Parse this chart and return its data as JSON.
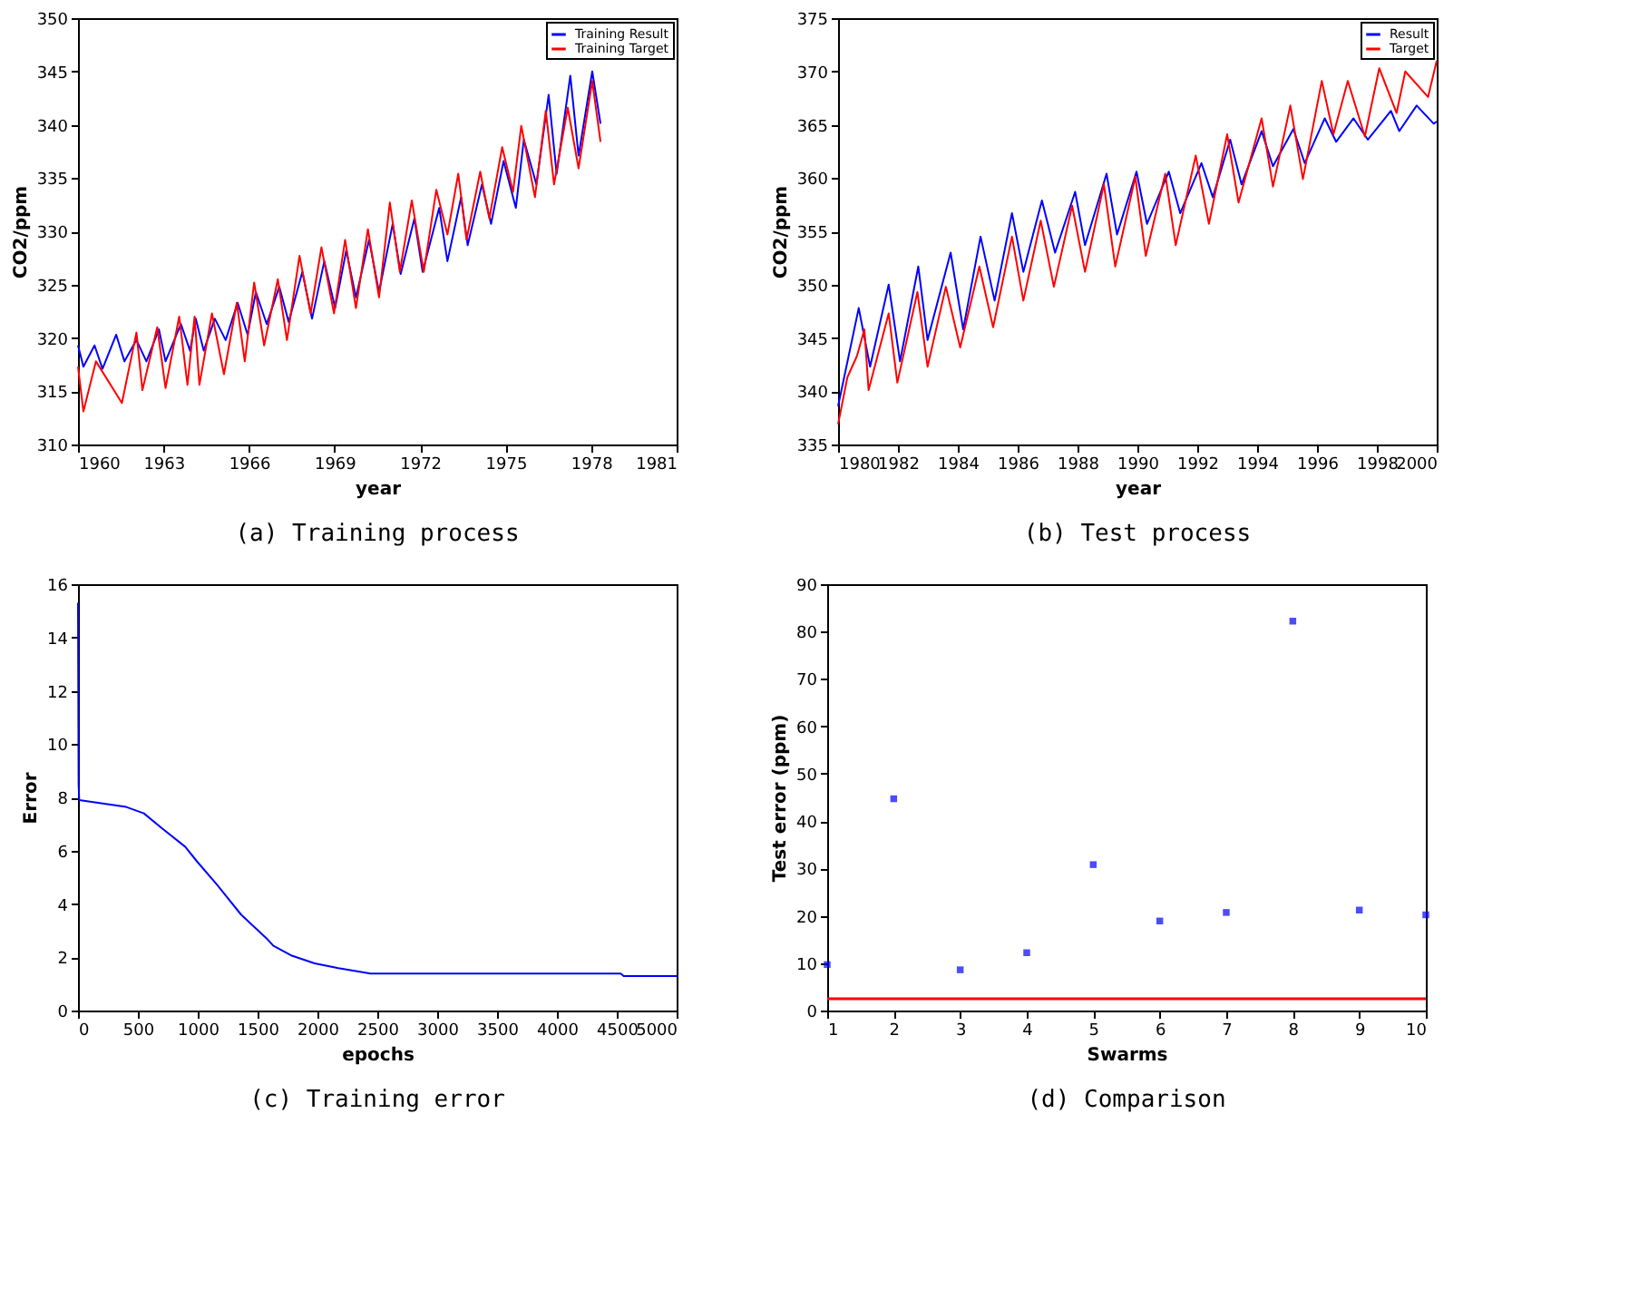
{
  "chart_data": [
    {
      "type": "line",
      "title": "(a) Training process",
      "xlabel": "year",
      "ylabel": "CO2/ppm",
      "xlim": [
        1960,
        1981
      ],
      "xticks": [
        1960,
        1963,
        1966,
        1969,
        1972,
        1975,
        1978,
        1981
      ],
      "ylim": [
        310,
        350
      ],
      "yticks": [
        310,
        315,
        320,
        325,
        330,
        335,
        340,
        345,
        350
      ],
      "legend": "top right",
      "grid": false,
      "series": [
        {
          "name": "Training Result",
          "color": "#0000ff",
          "x": [
            1960.0,
            1960.19,
            1960.58,
            1960.86,
            1961.34,
            1961.63,
            1962.05,
            1962.4,
            1962.84,
            1963.07,
            1963.61,
            1963.93,
            1964.13,
            1964.41,
            1964.8,
            1965.18,
            1965.6,
            1965.95,
            1966.24,
            1966.62,
            1967.06,
            1967.39,
            1967.87,
            1968.21,
            1968.64,
            1969.02,
            1969.41,
            1969.75,
            1970.21,
            1970.56,
            1971.04,
            1971.32,
            1971.8,
            1972.09,
            1972.67,
            1972.96,
            1973.44,
            1973.67,
            1974.17,
            1974.49,
            1974.93,
            1975.36,
            1975.64,
            1976.08,
            1976.51,
            1976.79,
            1977.27,
            1977.56,
            1978.04,
            1978.33
          ],
          "values": [
            319.3,
            317.3,
            319.3,
            317.1,
            320.3,
            317.8,
            319.8,
            317.8,
            320.8,
            317.8,
            321.3,
            318.8,
            321.8,
            318.8,
            321.8,
            319.8,
            323.3,
            320.3,
            324.3,
            321.3,
            324.8,
            321.5,
            326.2,
            321.8,
            327.2,
            322.8,
            328.2,
            323.8,
            329.2,
            324.3,
            330.7,
            326.0,
            331.2,
            326.2,
            332.2,
            327.2,
            333.2,
            328.7,
            334.4,
            330.7,
            336.6,
            332.2,
            338.6,
            334.4,
            342.8,
            335.4,
            344.6,
            337.1,
            345.0,
            340.1
          ]
        },
        {
          "name": "Training Target",
          "color": "#ff0000",
          "x": [
            1960.0,
            1960.19,
            1960.63,
            1961.54,
            1962.05,
            1962.26,
            1962.78,
            1963.07,
            1963.55,
            1963.84,
            1964.09,
            1964.26,
            1964.7,
            1965.12,
            1965.57,
            1965.85,
            1966.18,
            1966.53,
            1967.01,
            1967.33,
            1967.77,
            1968.16,
            1968.54,
            1968.98,
            1969.37,
            1969.75,
            1970.17,
            1970.56,
            1970.94,
            1971.29,
            1971.71,
            1972.13,
            1972.57,
            1972.96,
            1973.34,
            1973.63,
            1974.11,
            1974.43,
            1974.88,
            1975.26,
            1975.55,
            1976.03,
            1976.41,
            1976.7,
            1977.18,
            1977.56,
            1978.04,
            1978.33
          ],
          "values": [
            317.3,
            313.1,
            317.8,
            313.9,
            320.5,
            315.1,
            321.0,
            315.3,
            322.0,
            315.6,
            322.0,
            315.6,
            322.3,
            316.6,
            323.3,
            317.8,
            325.2,
            319.3,
            325.5,
            319.8,
            327.7,
            322.3,
            328.5,
            322.3,
            329.2,
            322.8,
            330.2,
            323.8,
            332.7,
            326.2,
            332.9,
            326.2,
            333.9,
            329.7,
            335.4,
            329.2,
            335.6,
            331.2,
            337.9,
            333.7,
            339.9,
            333.2,
            341.3,
            334.4,
            341.6,
            335.9,
            344.1,
            338.4
          ]
        }
      ]
    },
    {
      "type": "line",
      "title": "(b) Test process",
      "xlabel": "year",
      "ylabel": "CO2/ppm",
      "xlim": [
        1980,
        2000
      ],
      "xticks": [
        1980,
        1982,
        1984,
        1986,
        1988,
        1990,
        1992,
        1994,
        1996,
        1998,
        2000
      ],
      "ylim": [
        335,
        375
      ],
      "yticks": [
        335,
        340,
        345,
        350,
        355,
        360,
        365,
        370,
        375
      ],
      "legend": "top right",
      "grid": false,
      "series": [
        {
          "name": "Result",
          "color": "#0000ff",
          "x": [
            1980.0,
            1980.69,
            1981.07,
            1981.69,
            1982.07,
            1982.68,
            1982.99,
            1983.76,
            1984.18,
            1984.76,
            1985.23,
            1985.81,
            1986.19,
            1986.81,
            1987.25,
            1987.92,
            1988.25,
            1988.97,
            1989.32,
            1989.97,
            1990.32,
            1991.05,
            1991.43,
            1992.14,
            1992.52,
            1993.1,
            1993.48,
            1994.15,
            1994.53,
            1995.21,
            1995.59,
            1996.26,
            1996.64,
            1997.22,
            1997.7,
            1998.47,
            1998.75,
            1999.33,
            1999.9,
            2000.0
          ],
          "values": [
            338.6,
            347.8,
            342.3,
            350.0,
            342.8,
            351.7,
            344.8,
            353.0,
            345.8,
            354.5,
            348.5,
            356.7,
            351.2,
            357.9,
            353.0,
            358.7,
            353.7,
            360.4,
            354.7,
            360.6,
            355.7,
            360.6,
            356.7,
            361.4,
            358.2,
            363.6,
            359.4,
            364.4,
            361.1,
            364.6,
            361.4,
            365.6,
            363.4,
            365.6,
            363.6,
            366.3,
            364.4,
            366.8,
            365.1,
            365.3
          ]
        },
        {
          "name": "Target",
          "color": "#ff0000",
          "x": [
            1980.0,
            1980.31,
            1980.63,
            1980.88,
            1981.02,
            1981.69,
            1981.98,
            1982.65,
            1982.99,
            1983.6,
            1984.08,
            1984.72,
            1985.18,
            1985.81,
            1986.19,
            1986.77,
            1987.21,
            1987.82,
            1988.25,
            1988.88,
            1989.26,
            1989.93,
            1990.28,
            1990.93,
            1991.28,
            1991.95,
            1992.39,
            1993.0,
            1993.38,
            1994.15,
            1994.53,
            1995.11,
            1995.53,
            1996.16,
            1996.55,
            1997.03,
            1997.6,
            1998.08,
            1998.66,
            1998.95,
            1999.71,
            2000.0
          ],
          "values": [
            336.9,
            341.3,
            343.3,
            345.8,
            340.1,
            347.3,
            340.8,
            349.3,
            342.3,
            349.8,
            344.1,
            351.7,
            346.0,
            354.5,
            348.5,
            356.0,
            349.8,
            357.4,
            351.2,
            359.4,
            351.7,
            360.1,
            352.7,
            360.4,
            353.7,
            362.1,
            355.7,
            364.1,
            357.7,
            365.6,
            359.2,
            366.8,
            359.9,
            369.1,
            364.1,
            369.1,
            363.9,
            370.3,
            366.1,
            370.0,
            367.6,
            371.0
          ]
        }
      ]
    },
    {
      "type": "line",
      "title": "(c) Training error",
      "xlabel": "epochs",
      "ylabel": "Error",
      "xlim": [
        0,
        5000
      ],
      "xticks": [
        0,
        500,
        1000,
        1500,
        2000,
        2500,
        3000,
        3500,
        4000,
        4500,
        5000
      ],
      "ylim": [
        0,
        16
      ],
      "yticks": [
        0,
        2,
        4,
        6,
        8,
        10,
        12,
        14,
        16
      ],
      "grid": false,
      "series": [
        {
          "color": "#0000ff",
          "x": [
            0,
            5,
            10,
            403,
            550,
            698,
            895,
            993,
            1165,
            1362,
            1583,
            1632,
            1780,
            1977,
            2174,
            2444,
            4533,
            4558,
            5000
          ],
          "values": [
            15.3,
            8.5,
            7.9,
            7.64,
            7.4,
            6.85,
            6.15,
            5.6,
            4.7,
            3.6,
            2.67,
            2.43,
            2.07,
            1.77,
            1.59,
            1.39,
            1.39,
            1.29,
            1.29
          ]
        }
      ]
    },
    {
      "type": "scatter",
      "title": "(d) Comparison",
      "xlabel": "Swarms",
      "ylabel": "Test error (ppm)",
      "xlim": [
        1,
        10
      ],
      "xticks": [
        1,
        2,
        3,
        4,
        5,
        6,
        7,
        8,
        9,
        10
      ],
      "ylim": [
        0,
        90
      ],
      "yticks": [
        0,
        10,
        20,
        30,
        40,
        50,
        60,
        70,
        80,
        90
      ],
      "grid": false,
      "marker": "square",
      "series": [
        {
          "color": "#0000ff",
          "x": [
            1,
            2,
            3,
            4,
            5,
            6,
            7,
            8,
            9,
            10
          ],
          "values": [
            9.7,
            44.7,
            8.6,
            12.2,
            30.8,
            18.9,
            20.7,
            82.2,
            21.2,
            20.2
          ]
        }
      ],
      "ref_lines": [
        {
          "axis": "y",
          "value": 2.5,
          "color": "#ff0000",
          "line_style": "solid"
        }
      ]
    }
  ]
}
